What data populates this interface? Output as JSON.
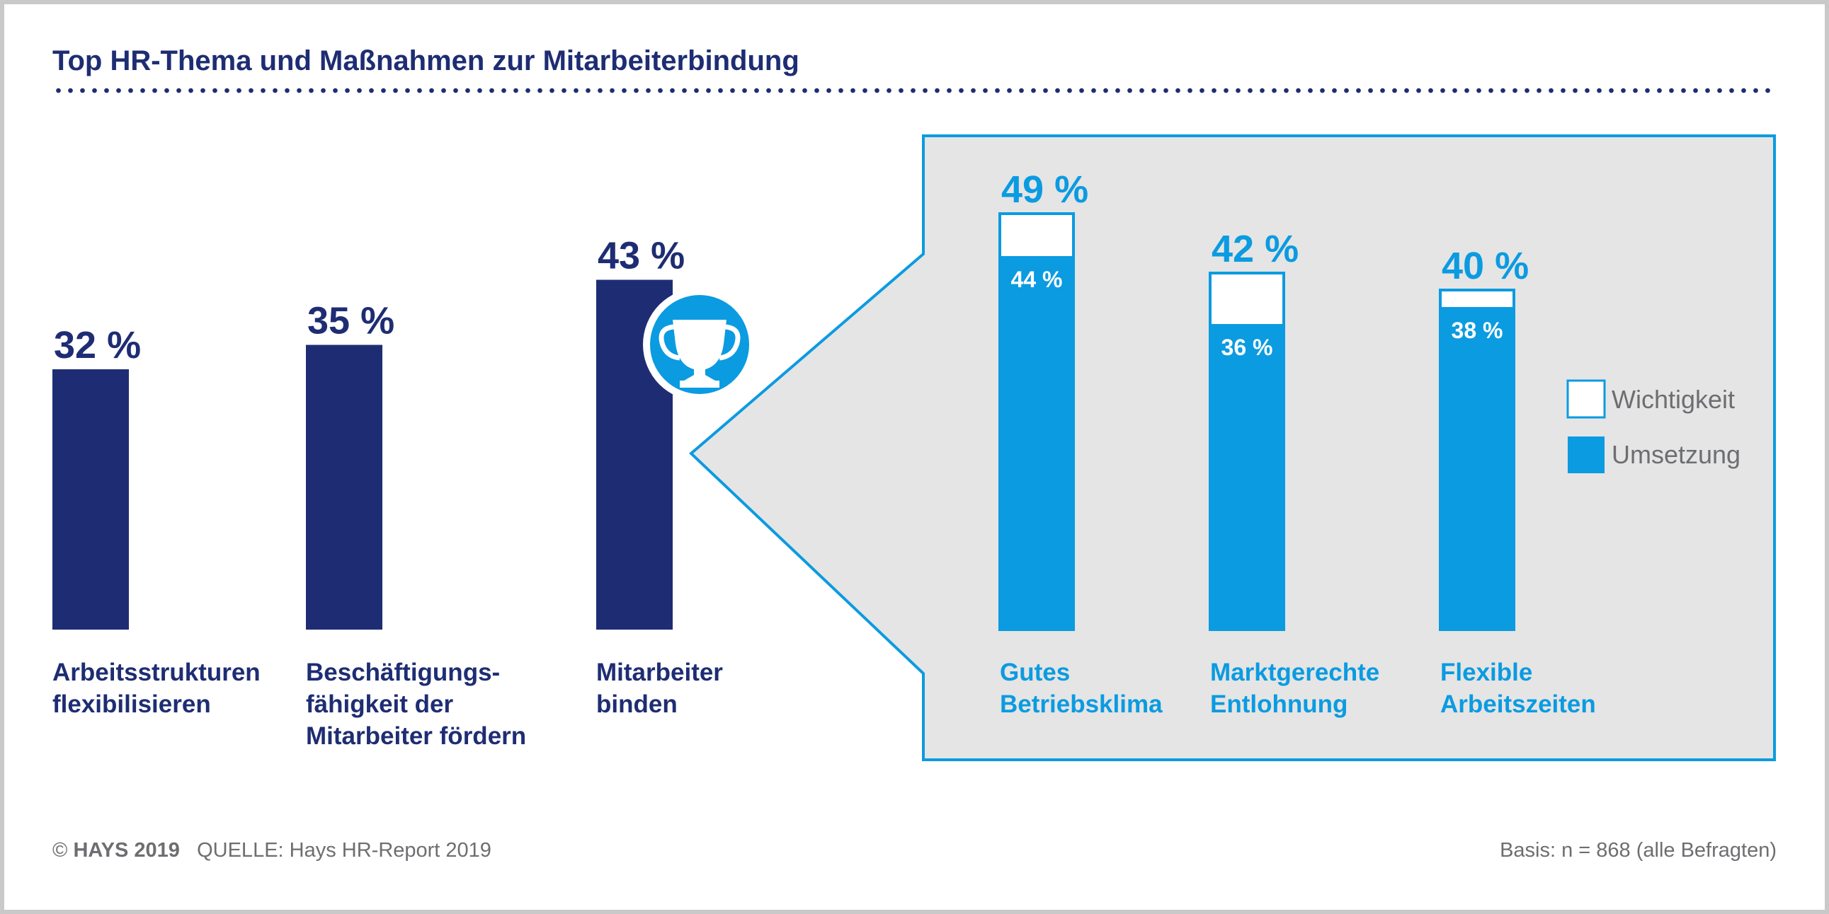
{
  "title": "Top HR-Thema und Maßnahmen zur Mitarbeiterbindung",
  "colors": {
    "navy": "#1e2d73",
    "blue": "#0b9be1",
    "panel": "#e5e5e5",
    "gray_text": "#6d6e71"
  },
  "icon": "trophy-icon",
  "chart_data": [
    {
      "type": "bar",
      "categories": [
        "Arbeitsstrukturen flexibilisieren",
        "Beschäftigungs- fähigkeit der Mitarbeiter fördern",
        "Mitarbeiter binden"
      ],
      "category_lines": [
        [
          "Arbeitsstrukturen",
          "flexibilisieren"
        ],
        [
          "Beschäftigungs-",
          "fähigkeit der",
          "Mitarbeiter fördern"
        ],
        [
          "Mitarbeiter",
          "binden"
        ]
      ],
      "values": [
        32,
        35,
        43
      ],
      "labels": [
        "32 %",
        "35 %",
        "43 %"
      ],
      "ylim": [
        0,
        100
      ]
    },
    {
      "type": "bar",
      "categories": [
        "Gutes Betriebsklima",
        "Marktgerechte Entlohnung",
        "Flexible Arbeitszeiten"
      ],
      "category_lines": [
        [
          "Gutes",
          "Betriebsklima"
        ],
        [
          "Marktgerechte",
          "Entlohnung"
        ],
        [
          "Flexible",
          "Arbeitszeiten"
        ]
      ],
      "series": [
        {
          "name": "Wichtigkeit",
          "values": [
            49,
            42,
            40
          ],
          "labels": [
            "49 %",
            "42 %",
            "40 %"
          ]
        },
        {
          "name": "Umsetzung",
          "values": [
            44,
            36,
            38
          ],
          "labels": [
            "44 %",
            "36 %",
            "38 %"
          ]
        }
      ],
      "ylim": [
        0,
        100
      ],
      "legend": "right"
    }
  ],
  "footer": {
    "copyright_symbol": "©",
    "brand": "HAYS 2019",
    "source": "QUELLE: Hays HR-Report 2019",
    "basis": "Basis: n = 868 (alle Befragten)"
  }
}
